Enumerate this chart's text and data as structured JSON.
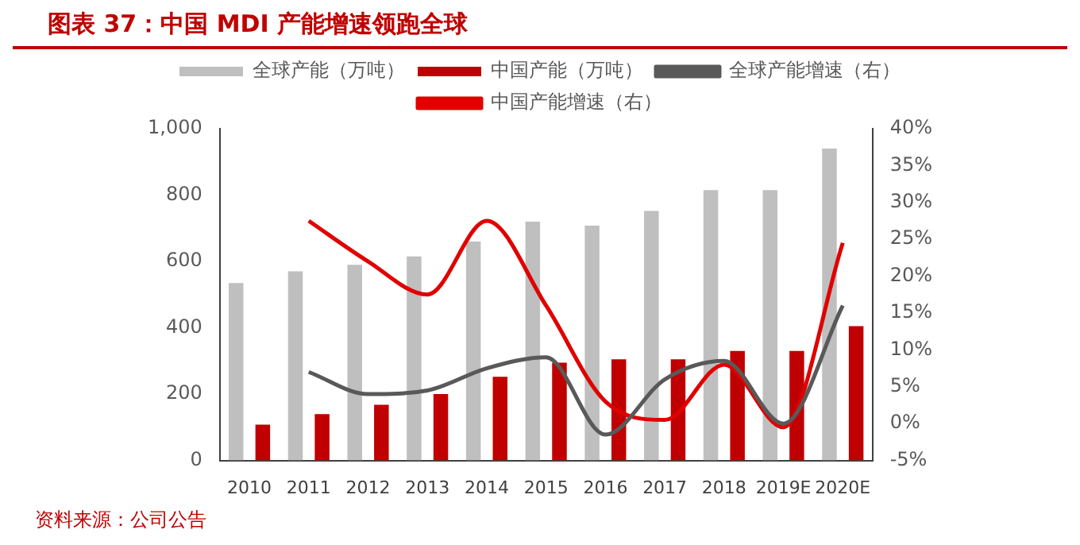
{
  "chart_data": {
    "type": "bar",
    "title": "图表 37：中国 MDI 产能增速领跑全球",
    "annotations": [
      "资料来源：公司公告"
    ],
    "categories": [
      "2010",
      "2011",
      "2012",
      "2013",
      "2014",
      "2015",
      "2016",
      "2017",
      "2018",
      "2019E",
      "2020E"
    ],
    "series": [
      {
        "name": "全球产能（万吨）",
        "color": "#bfbfbf",
        "values": [
          535,
          570,
          590,
          615,
          660,
          720,
          708,
          752,
          815,
          815,
          940
        ]
      },
      {
        "name": "中国产能（万吨）",
        "color": "#c00000",
        "values": [
          108,
          140,
          168,
          200,
          252,
          295,
          305,
          305,
          330,
          330,
          405
        ]
      },
      {
        "name": "全球产能增速（右）",
        "type": "line",
        "axis": "y2",
        "color": "#595959",
        "values": [
          null,
          7,
          4,
          4.5,
          7.5,
          9,
          -1.5,
          6,
          8.5,
          0,
          16
        ]
      },
      {
        "name": "中国产能增速（右）",
        "type": "line",
        "axis": "y2",
        "color": "#e00000",
        "values": [
          null,
          27.5,
          22,
          17.5,
          27.5,
          16,
          3,
          0.5,
          8,
          -0.5,
          24.5
        ]
      }
    ],
    "ylim": [
      0,
      1000
    ],
    "yticks": [
      0,
      200,
      400,
      600,
      800,
      {
        "value": 1000,
        "label": "1,000"
      }
    ],
    "y2lim": [
      -5,
      40
    ],
    "y2ticks": [
      {
        "value": -5,
        "label": "-5%"
      },
      {
        "value": 0,
        "label": "0%"
      },
      {
        "value": 5,
        "label": "5%"
      },
      {
        "value": 10,
        "label": "10%"
      },
      {
        "value": 15,
        "label": "15%"
      },
      {
        "value": 20,
        "label": "20%"
      },
      {
        "value": 25,
        "label": "25%"
      },
      {
        "value": 30,
        "label": "30%"
      },
      {
        "value": 35,
        "label": "35%"
      },
      {
        "value": 40,
        "label": "40%"
      }
    ],
    "grid": false,
    "legend": "top",
    "marker": "none",
    "line_style": "solid"
  }
}
